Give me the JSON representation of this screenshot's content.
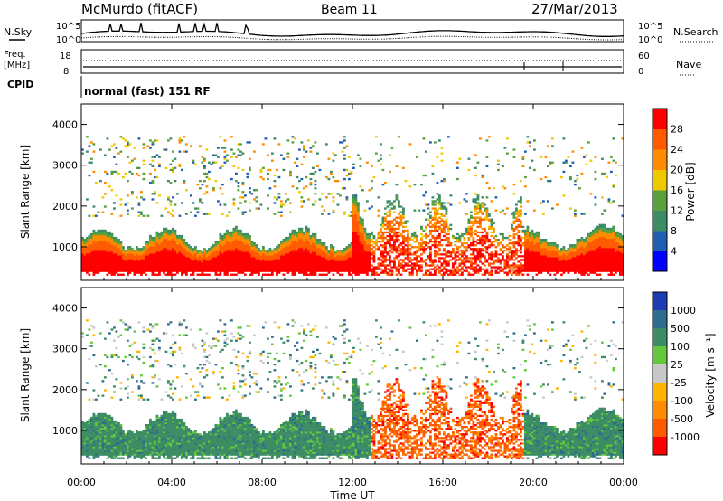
{
  "header": {
    "station": "McMurdo (fitACF)",
    "beam": "Beam 11",
    "date": "27/Mar/2013"
  },
  "top_panel": {
    "left_label": "N.Sky",
    "right_label": "N.Search",
    "left_ticks": [
      "10^5",
      "10^0"
    ],
    "right_ticks": [
      "10^5",
      "10^0"
    ]
  },
  "freq_panel": {
    "left_label_line1": "Freq.",
    "left_label_line2": "[MHz]",
    "right_label": "Nave",
    "left_ticks": [
      "18",
      "8"
    ],
    "right_ticks": [
      "60",
      "0"
    ]
  },
  "cpid": {
    "label": "CPID",
    "program": "normal (fast) 151 RF"
  },
  "x_axis": {
    "label": "Time UT",
    "ticks": [
      "00:00",
      "04:00",
      "08:00",
      "12:00",
      "16:00",
      "20:00",
      "00:00"
    ]
  },
  "power_panel": {
    "ylabel": "Slant Range [km]",
    "yticks": [
      "1000",
      "2000",
      "3000",
      "4000"
    ],
    "colorbar_label": "Power [dB]",
    "colorbar_ticks": [
      "4",
      "8",
      "12",
      "16",
      "20",
      "24",
      "28"
    ],
    "colors": [
      "#0000ff",
      "#1e5fb4",
      "#3c8c64",
      "#5aa03c",
      "#f0c800",
      "#ff8c00",
      "#ff5a00",
      "#ff0000"
    ]
  },
  "velocity_panel": {
    "ylabel": "Slant Range [km]",
    "yticks": [
      "1000",
      "2000",
      "3000",
      "4000"
    ],
    "colorbar_label": "Velocity [m s⁻¹]",
    "colorbar_ticks": [
      "1000",
      "500",
      "100",
      "25",
      "-25",
      "-100",
      "-500",
      "-1000"
    ],
    "colors": [
      "#1e3cb4",
      "#2e6e8c",
      "#3c8c64",
      "#64c83c",
      "#c8c8c8",
      "#ffb400",
      "#ff8c00",
      "#ff5a00",
      "#ff0000"
    ]
  },
  "chart_data": [
    {
      "type": "heatmap",
      "quantity": "Power",
      "unit": "dB",
      "x_range": [
        "00:00",
        "24:00"
      ],
      "y_range_km": [
        180,
        4500
      ],
      "color_scale": [
        0,
        32
      ],
      "notes": "Strong echoes (~28 dB) at 400-1300 km all day except ~13:00-19:00 where returns are patchy and extend to ~2200 km."
    },
    {
      "type": "heatmap",
      "quantity": "Velocity",
      "unit": "m s-1",
      "x_range": [
        "00:00",
        "24:00"
      ],
      "y_range_km": [
        180,
        4500
      ],
      "color_scale": [
        -1000,
        1000
      ],
      "notes": "Positive velocities (~+100 to +500) at 400-1300 km from 00:00-12:00 and 20:00-24:00; negative velocities (~-100 to -500) between 12:00-20:00 up to ~2400 km."
    }
  ]
}
